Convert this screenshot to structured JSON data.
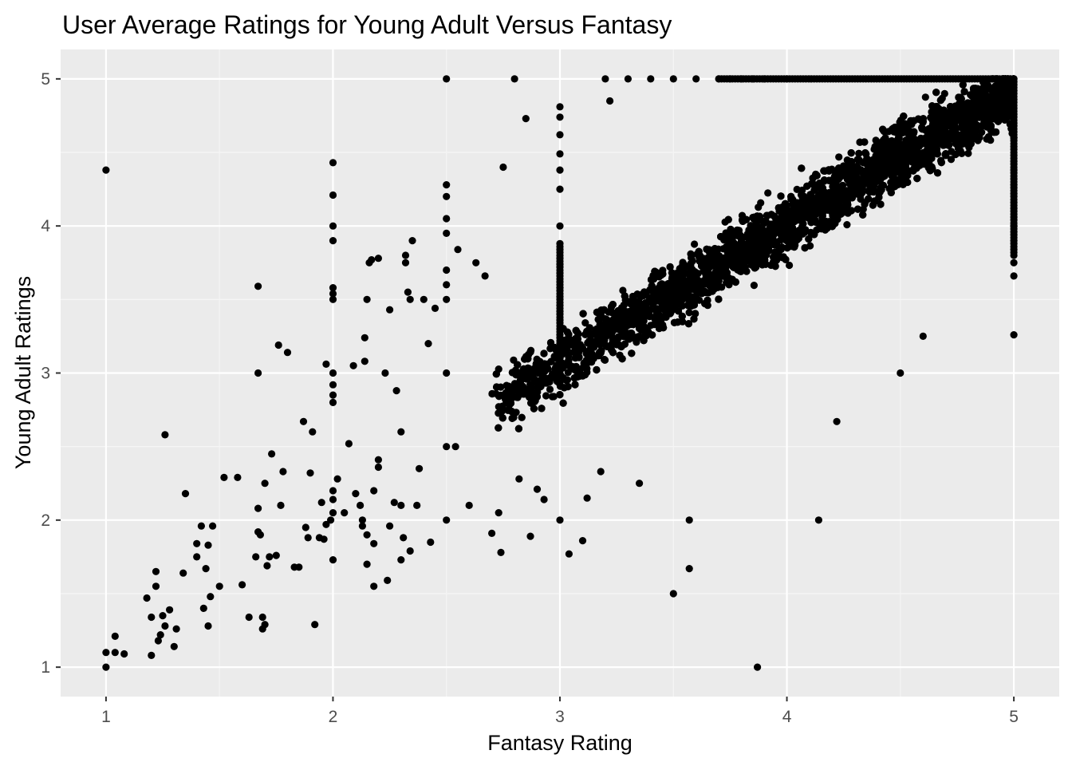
{
  "chart_data": {
    "type": "scatter",
    "title": "User Average Ratings for Young Adult Versus Fantasy",
    "xlabel": "Fantasy Rating",
    "ylabel": "Young Adult Ratings",
    "xlim": [
      0.8,
      5.2
    ],
    "ylim": [
      0.8,
      5.2
    ],
    "x_ticks": [
      1,
      2,
      3,
      4,
      5
    ],
    "y_ticks": [
      1,
      2,
      3,
      4,
      5
    ],
    "x_tick_labels": [
      "1",
      "2",
      "3",
      "4",
      "5"
    ],
    "y_tick_labels": [
      "1",
      "2",
      "3",
      "4",
      "5"
    ],
    "grid": true,
    "legend": "none",
    "colors": {
      "panel_background": "#ebebeb",
      "grid_major": "#ffffff",
      "grid_minor": "#f5f5f5",
      "point": "#000000",
      "tick_label": "#4d4d4d"
    },
    "series": [
      {
        "points": [
          [
            1.0,
            4.38
          ],
          [
            1.0,
            1.0
          ],
          [
            1.0,
            1.1
          ],
          [
            1.04,
            1.1
          ],
          [
            1.04,
            1.21
          ],
          [
            1.08,
            1.09
          ],
          [
            1.18,
            1.47
          ],
          [
            1.2,
            1.08
          ],
          [
            1.2,
            1.34
          ],
          [
            1.22,
            1.55
          ],
          [
            1.22,
            1.65
          ],
          [
            1.23,
            1.18
          ],
          [
            1.24,
            1.22
          ],
          [
            1.25,
            1.35
          ],
          [
            1.26,
            2.58
          ],
          [
            1.26,
            1.28
          ],
          [
            1.28,
            1.39
          ],
          [
            1.3,
            1.14
          ],
          [
            1.31,
            1.26
          ],
          [
            1.34,
            1.64
          ],
          [
            1.35,
            2.18
          ],
          [
            1.4,
            1.75
          ],
          [
            1.4,
            1.84
          ],
          [
            1.42,
            1.96
          ],
          [
            1.43,
            1.4
          ],
          [
            1.44,
            1.67
          ],
          [
            1.45,
            1.28
          ],
          [
            1.45,
            1.83
          ],
          [
            1.46,
            1.48
          ],
          [
            1.47,
            1.96
          ],
          [
            1.5,
            1.55
          ],
          [
            1.52,
            2.29
          ],
          [
            1.58,
            2.29
          ],
          [
            1.6,
            1.56
          ],
          [
            1.63,
            1.34
          ],
          [
            1.66,
            1.75
          ],
          [
            1.67,
            3.59
          ],
          [
            1.67,
            3.0
          ],
          [
            1.67,
            1.92
          ],
          [
            1.67,
            2.08
          ],
          [
            1.68,
            1.9
          ],
          [
            1.69,
            1.26
          ],
          [
            1.69,
            1.34
          ],
          [
            1.7,
            1.29
          ],
          [
            1.7,
            2.25
          ],
          [
            1.71,
            1.69
          ],
          [
            1.72,
            1.75
          ],
          [
            1.73,
            2.45
          ],
          [
            1.75,
            1.76
          ],
          [
            1.76,
            3.19
          ],
          [
            1.77,
            2.1
          ],
          [
            1.78,
            2.33
          ],
          [
            1.8,
            3.14
          ],
          [
            1.83,
            1.68
          ],
          [
            1.85,
            1.68
          ],
          [
            1.87,
            2.67
          ],
          [
            1.88,
            1.95
          ],
          [
            1.89,
            1.88
          ],
          [
            1.9,
            2.32
          ],
          [
            1.91,
            2.6
          ],
          [
            1.92,
            1.29
          ],
          [
            1.94,
            1.88
          ],
          [
            1.95,
            2.12
          ],
          [
            1.96,
            1.87
          ],
          [
            1.97,
            3.06
          ],
          [
            1.97,
            1.97
          ],
          [
            1.99,
            2.0
          ],
          [
            2.0,
            4.43
          ],
          [
            2.0,
            4.21
          ],
          [
            2.0,
            4.0
          ],
          [
            2.0,
            3.9
          ],
          [
            2.0,
            3.58
          ],
          [
            2.0,
            3.54
          ],
          [
            2.0,
            3.5
          ],
          [
            2.0,
            3.0
          ],
          [
            2.0,
            2.92
          ],
          [
            2.0,
            2.85
          ],
          [
            2.0,
            2.8
          ],
          [
            2.0,
            2.2
          ],
          [
            2.0,
            2.14
          ],
          [
            2.0,
            2.05
          ],
          [
            2.0,
            1.73
          ],
          [
            2.02,
            2.28
          ],
          [
            2.05,
            2.05
          ],
          [
            2.07,
            2.52
          ],
          [
            2.09,
            3.05
          ],
          [
            2.1,
            2.18
          ],
          [
            2.12,
            2.1
          ],
          [
            2.13,
            2.0
          ],
          [
            2.13,
            1.96
          ],
          [
            2.14,
            3.24
          ],
          [
            2.14,
            3.08
          ],
          [
            2.15,
            3.5
          ],
          [
            2.15,
            1.9
          ],
          [
            2.15,
            1.7
          ],
          [
            2.16,
            3.75
          ],
          [
            2.17,
            3.77
          ],
          [
            2.18,
            1.55
          ],
          [
            2.18,
            1.84
          ],
          [
            2.18,
            2.2
          ],
          [
            2.2,
            3.78
          ],
          [
            2.2,
            2.36
          ],
          [
            2.2,
            2.41
          ],
          [
            2.23,
            3.0
          ],
          [
            2.24,
            1.59
          ],
          [
            2.25,
            3.43
          ],
          [
            2.25,
            1.96
          ],
          [
            2.27,
            2.12
          ],
          [
            2.28,
            2.88
          ],
          [
            2.3,
            2.6
          ],
          [
            2.3,
            1.73
          ],
          [
            2.3,
            2.1
          ],
          [
            2.31,
            1.88
          ],
          [
            2.32,
            3.8
          ],
          [
            2.32,
            3.75
          ],
          [
            2.33,
            3.55
          ],
          [
            2.34,
            3.5
          ],
          [
            2.34,
            1.79
          ],
          [
            2.35,
            3.9
          ],
          [
            2.37,
            2.1
          ],
          [
            2.38,
            2.35
          ],
          [
            2.4,
            3.5
          ],
          [
            2.42,
            3.2
          ],
          [
            2.43,
            1.85
          ],
          [
            2.45,
            3.44
          ],
          [
            2.5,
            5.0
          ],
          [
            2.5,
            4.28
          ],
          [
            2.5,
            4.2
          ],
          [
            2.5,
            4.05
          ],
          [
            2.5,
            3.95
          ],
          [
            2.5,
            3.7
          ],
          [
            2.5,
            3.6
          ],
          [
            2.5,
            3.5
          ],
          [
            2.5,
            3.0
          ],
          [
            2.5,
            2.5
          ],
          [
            2.5,
            2.0
          ],
          [
            2.54,
            2.5
          ],
          [
            2.55,
            3.84
          ],
          [
            2.6,
            2.1
          ],
          [
            2.63,
            3.75
          ],
          [
            2.67,
            3.66
          ],
          [
            2.7,
            1.91
          ],
          [
            2.73,
            2.05
          ],
          [
            2.74,
            1.78
          ],
          [
            2.75,
            4.4
          ],
          [
            2.8,
            5.0
          ],
          [
            2.82,
            2.28
          ],
          [
            2.85,
            4.73
          ],
          [
            2.87,
            1.89
          ],
          [
            2.9,
            2.21
          ],
          [
            2.93,
            2.14
          ],
          [
            3.0,
            4.81
          ],
          [
            3.0,
            4.74
          ],
          [
            3.0,
            4.62
          ],
          [
            3.0,
            4.49
          ],
          [
            3.0,
            4.38
          ],
          [
            3.0,
            4.25
          ],
          [
            3.0,
            4.0
          ],
          [
            3.0,
            2.0
          ],
          [
            3.04,
            1.77
          ],
          [
            3.1,
            1.86
          ],
          [
            3.12,
            2.15
          ],
          [
            3.18,
            2.33
          ],
          [
            3.2,
            5.0
          ],
          [
            3.22,
            4.85
          ],
          [
            3.3,
            5.0
          ],
          [
            3.35,
            2.25
          ],
          [
            3.4,
            5.0
          ],
          [
            3.5,
            5.0
          ],
          [
            3.5,
            1.5
          ],
          [
            3.57,
            2.0
          ],
          [
            3.57,
            1.67
          ],
          [
            3.6,
            5.0
          ],
          [
            3.7,
            5.0
          ],
          [
            3.75,
            5.0
          ],
          [
            3.8,
            5.0
          ],
          [
            3.85,
            5.0
          ],
          [
            3.87,
            1.0
          ],
          [
            3.9,
            5.0
          ],
          [
            4.0,
            5.0
          ],
          [
            4.14,
            2.0
          ],
          [
            4.22,
            2.67
          ],
          [
            4.5,
            3.0
          ],
          [
            4.6,
            3.25
          ],
          [
            5.0,
            5.0
          ],
          [
            5.0,
            4.6
          ],
          [
            5.0,
            4.0
          ],
          [
            5.0,
            3.75
          ],
          [
            5.0,
            3.66
          ],
          [
            5.0,
            3.26
          ]
        ]
      }
    ],
    "dense_cloud": {
      "description": "thousands of overlapping points along the diagonal band",
      "x_range": [
        2.7,
        5.0
      ],
      "band_center_at_x": [
        [
          2.75,
          2.85
        ],
        [
          3.0,
          3.05
        ],
        [
          3.5,
          3.55
        ],
        [
          4.0,
          4.0
        ],
        [
          4.5,
          4.5
        ],
        [
          5.0,
          4.9
        ]
      ],
      "band_half_width": 0.35
    }
  }
}
